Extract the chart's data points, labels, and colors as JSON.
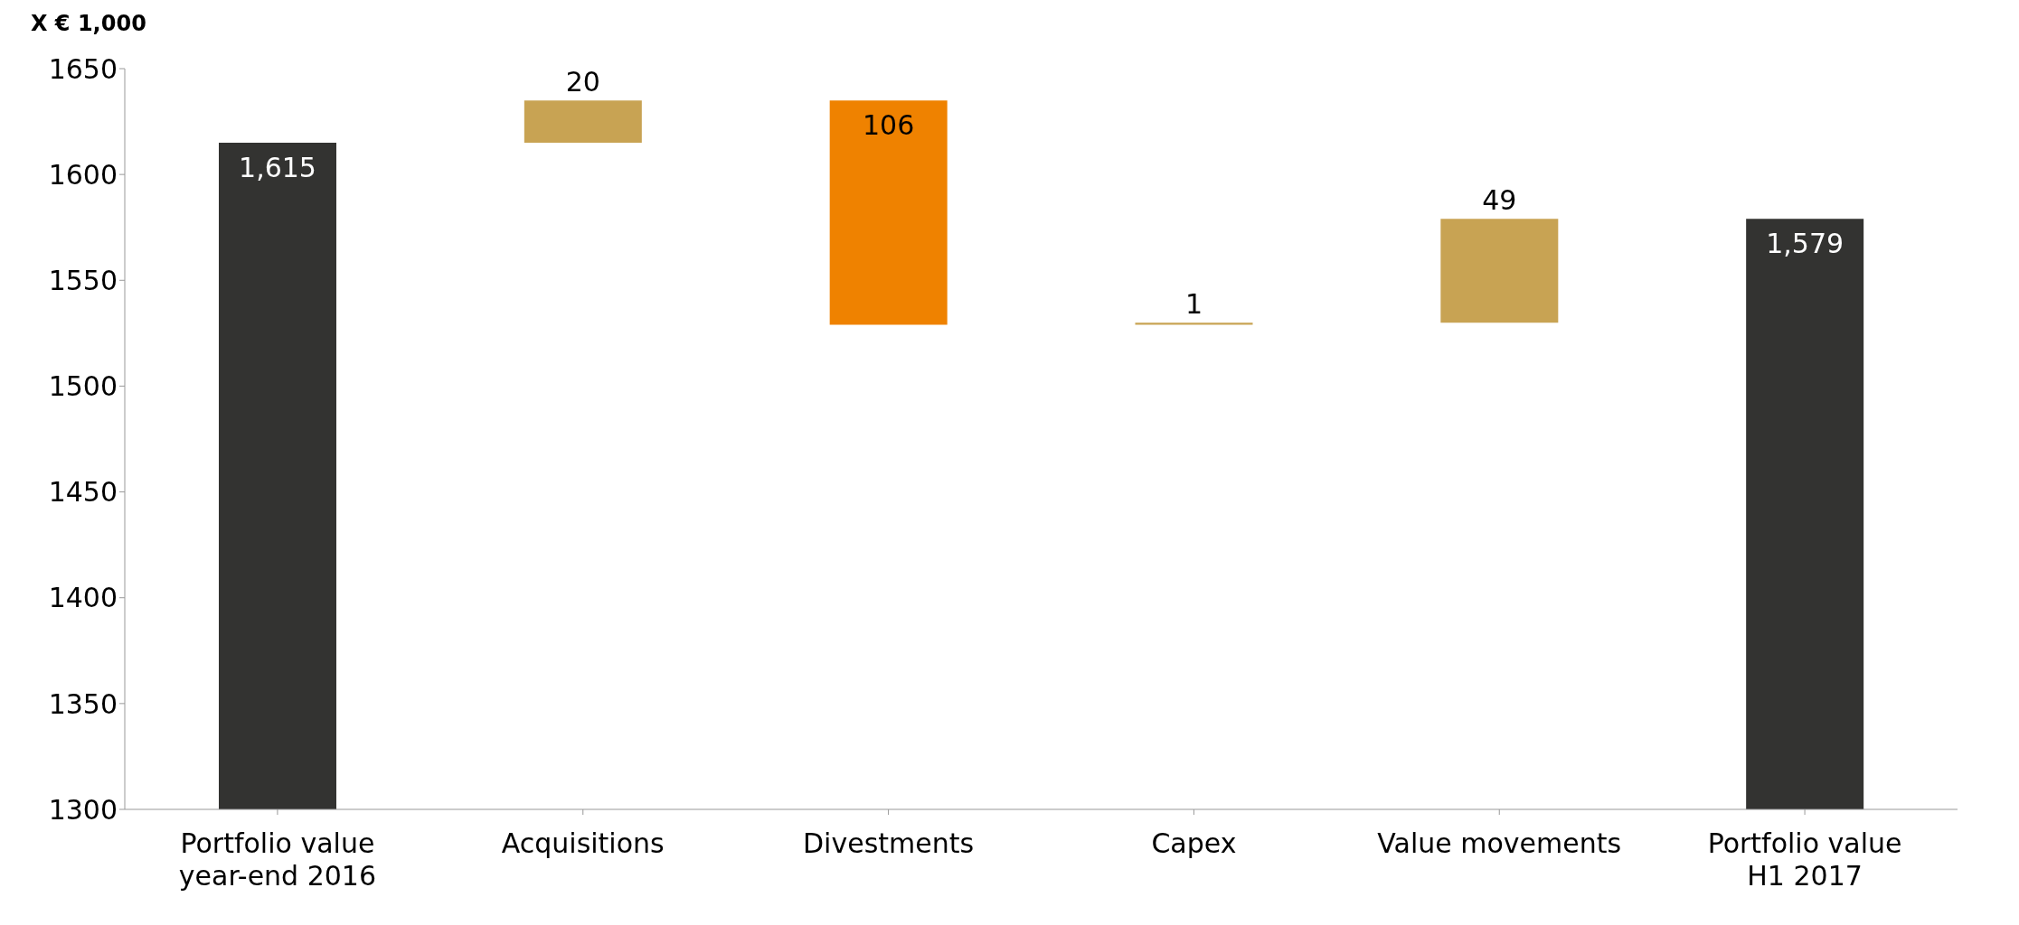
{
  "chart_data": {
    "type": "bar",
    "ylabel": "X € 1,000",
    "categories": [
      "Portfolio value year-end 2016",
      "Acquisitions",
      "Divestments",
      "Capex",
      "Value movements",
      "Portfolio value H1 2017"
    ],
    "values": [
      1615,
      20,
      -106,
      1,
      49,
      1579
    ],
    "base": [
      null,
      1615,
      1635,
      1529,
      1530,
      null
    ],
    "colors": [
      "#333331",
      "#c8a353",
      "#ef8200",
      "#c8a353",
      "#c8a353",
      "#333331"
    ],
    "value_labels": [
      "1,615",
      "20",
      "106",
      "1",
      "49",
      "1,579"
    ],
    "ylim": [
      1300,
      1650
    ],
    "yticks": [
      1300,
      1350,
      1400,
      1450,
      1500,
      1550,
      1600,
      1650
    ]
  }
}
